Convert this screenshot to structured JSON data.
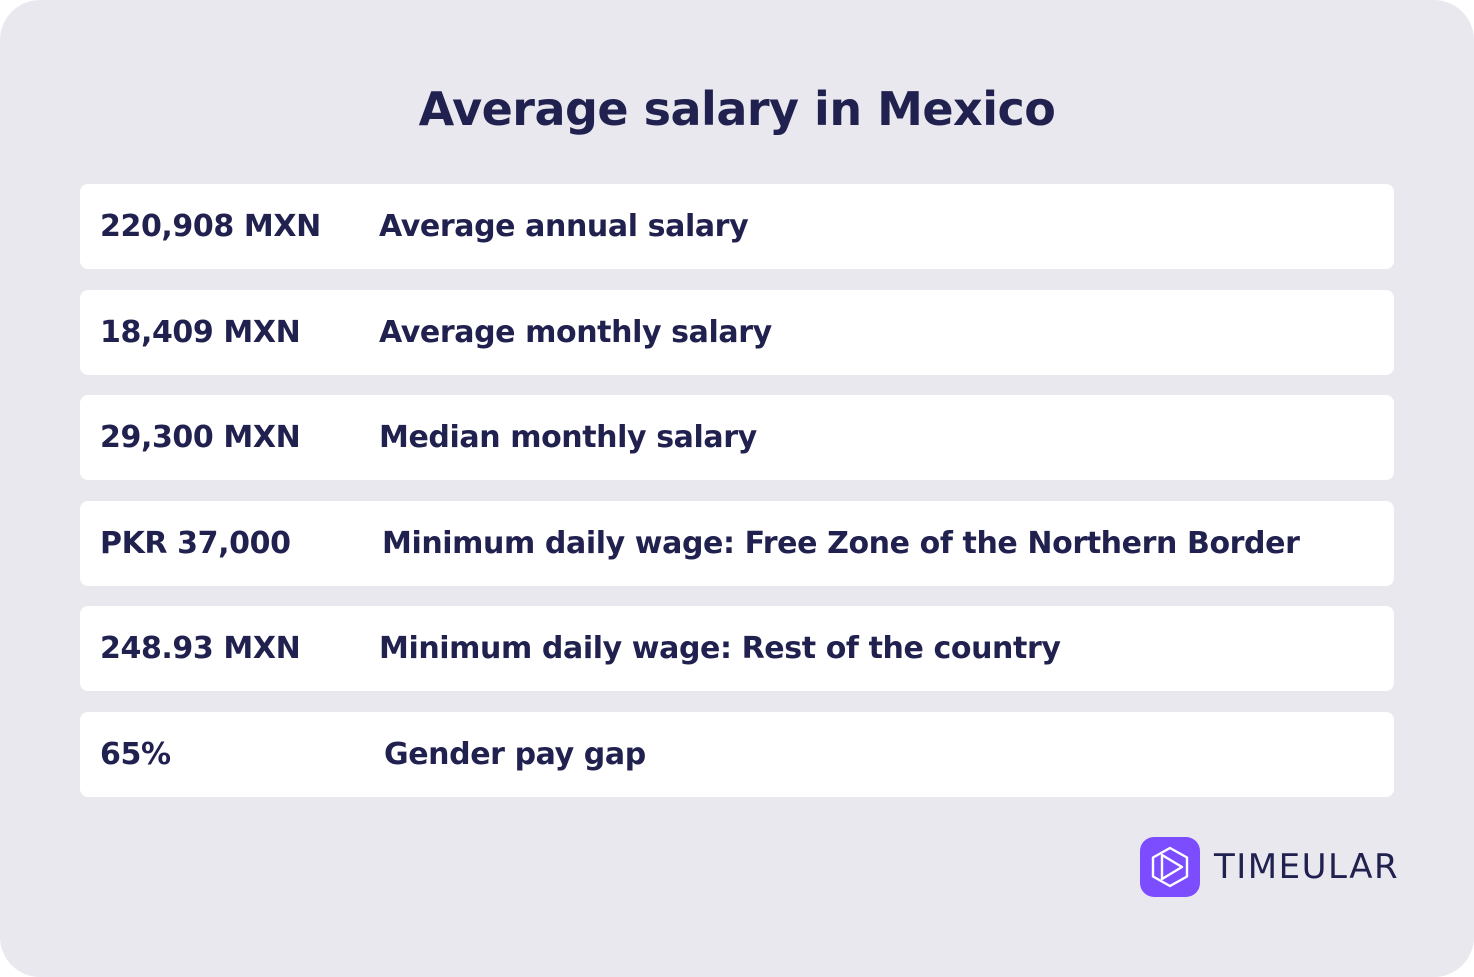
{
  "title": "Average salary in Mexico",
  "rows": [
    {
      "value": "220,908 MXN",
      "label": "Average annual salary"
    },
    {
      "value": "18,409 MXN",
      "label": "Average monthly salary"
    },
    {
      "value": "29,300 MXN",
      "label": "Median monthly salary"
    },
    {
      "value": "PKR 37,000",
      "label": "Minimum daily wage: Free Zone of the Northern Border"
    },
    {
      "value": "248.93 MXN",
      "label": "Minimum daily wage: Rest of the country"
    },
    {
      "value": "65%",
      "label": "Gender pay gap"
    }
  ],
  "brand": {
    "name": "TIMEULAR",
    "icon": "timeular-logo-icon",
    "accent_color": "#7c4dff",
    "text_color": "#21214f",
    "background_color": "#e9e8ef"
  }
}
